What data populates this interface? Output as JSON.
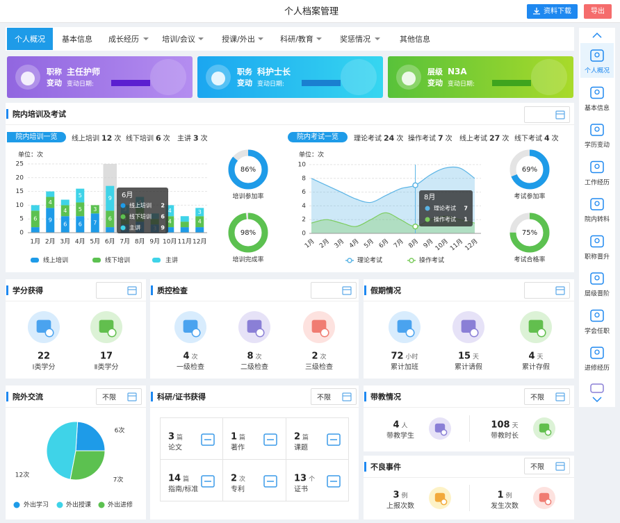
{
  "header": {
    "title": "个人档案管理",
    "download": "资料下载",
    "export": "导出"
  },
  "tabs": [
    "个人概况",
    "基本信息",
    "成长经历",
    "培训/会议",
    "授课/外出",
    "科研/教育",
    "奖惩情况",
    "其他信息"
  ],
  "cards": [
    {
      "label": "职称",
      "sub": "变动",
      "value": "主任护师",
      "date_label": "变动日期:"
    },
    {
      "label": "职务",
      "sub": "变动",
      "value": "科护士长",
      "date_label": "变动日期:"
    },
    {
      "label": "层级",
      "sub": "变动",
      "value": "N3A",
      "date_label": "变动日期:"
    }
  ],
  "training": {
    "title": "院内培训及考试",
    "train_tab": "院内培训一览",
    "train_stats": [
      {
        "label": "线上培训",
        "value": 12,
        "unit": "次"
      },
      {
        "label": "线下培训",
        "value": 6,
        "unit": "次"
      },
      {
        "label": "主讲",
        "value": 3,
        "unit": "次"
      }
    ],
    "exam_tab": "院内考试一览",
    "exam_stats": [
      {
        "label": "理论考试",
        "value": 24,
        "unit": "次"
      },
      {
        "label": "操作考试",
        "value": 7,
        "unit": "次"
      },
      {
        "label": "线上考试",
        "value": 27,
        "unit": "次"
      },
      {
        "label": "线下考试",
        "value": 4,
        "unit": "次"
      }
    ],
    "bar_chart": {
      "type": "bar",
      "stacked": true,
      "unit_label": "单位：次",
      "categories": [
        "1月",
        "2月",
        "3月",
        "4月",
        "5月",
        "6月",
        "7月",
        "8月",
        "9月",
        "10月",
        "11月",
        "12月"
      ],
      "ylim": [
        0,
        25
      ],
      "yticks": [
        0,
        5,
        10,
        15,
        20,
        25
      ],
      "grid": true,
      "tooltip_index": 5,
      "series": [
        {
          "name": "线上培训",
          "color": "#1e9be8",
          "values": [
            2,
            9,
            6,
            6,
            7,
            2,
            3,
            4,
            3,
            2,
            2,
            2
          ]
        },
        {
          "name": "线下培训",
          "color": "#5cc150",
          "values": [
            6,
            4,
            4,
            5,
            3,
            6,
            4,
            5,
            2,
            4,
            2,
            4
          ]
        },
        {
          "name": "主讲",
          "color": "#3fd3e8",
          "values": [
            2,
            2,
            2,
            5,
            0,
            9,
            3,
            4,
            2,
            4,
            2,
            3
          ]
        }
      ]
    },
    "line_chart": {
      "type": "line",
      "smooth": true,
      "area": true,
      "unit_label": "单位：次",
      "categories": [
        "1月",
        "2月",
        "3月",
        "4月",
        "5月",
        "6月",
        "7月",
        "8月",
        "9月",
        "10月",
        "11月",
        "12月"
      ],
      "ylim": [
        0,
        10
      ],
      "yticks": [
        0,
        2,
        4,
        6,
        8,
        10
      ],
      "grid": true,
      "tooltip_index": 7,
      "series": [
        {
          "name": "理论考试",
          "color": "#5bb4e5",
          "values": [
            8,
            7,
            6,
            5,
            4.5,
            5.5,
            6.5,
            7,
            8.5,
            9.5,
            9.5,
            8
          ]
        },
        {
          "name": "操作考试",
          "color": "#7ccc5e",
          "values": [
            1.5,
            2,
            1.5,
            1,
            2,
            3,
            2,
            1,
            2,
            2.5,
            2,
            1.5
          ]
        }
      ]
    },
    "train_rates": [
      {
        "name": "培训参加率",
        "value": 86,
        "value_label": "86%",
        "color": "#1e9be8"
      },
      {
        "name": "培训完成率",
        "value": 98,
        "value_label": "98%",
        "color": "#5cc150"
      }
    ],
    "exam_rates": [
      {
        "name": "考试参加率",
        "value": 69,
        "value_label": "69%",
        "color": "#1e9be8"
      },
      {
        "name": "考试合格率",
        "value": 75,
        "value_label": "75%",
        "color": "#5cc150"
      }
    ]
  },
  "credits": {
    "title": "学分获得",
    "items": [
      {
        "value": 22,
        "label": "Ⅰ类学分"
      },
      {
        "value": 17,
        "label": "Ⅱ类学分"
      }
    ]
  },
  "quality": {
    "title": "质控检查",
    "items": [
      {
        "value": 4,
        "unit": "次",
        "label": "一级检查"
      },
      {
        "value": 8,
        "unit": "次",
        "label": "二级检查"
      },
      {
        "value": 2,
        "unit": "次",
        "label": "三级检查"
      }
    ]
  },
  "leave": {
    "title": "假期情况",
    "items": [
      {
        "value": 72,
        "unit": "小时",
        "label": "累计加班"
      },
      {
        "value": 15,
        "unit": "天",
        "label": "累计请假"
      },
      {
        "value": 4,
        "unit": "天",
        "label": "累计存假"
      }
    ]
  },
  "outside": {
    "title": "院外交流",
    "filter": "不限",
    "pie": {
      "type": "pie",
      "categories": [
        "外出学习",
        "外出授课",
        "外出进修"
      ],
      "values": [
        6,
        12,
        7
      ],
      "value_labels": [
        "6次",
        "12次",
        "7次"
      ],
      "colors": [
        "#1e9be8",
        "#3fd3e8",
        "#5cc150"
      ]
    }
  },
  "research": {
    "title": "科研/证书获得",
    "filter": "不限",
    "items": [
      {
        "value": 3,
        "unit": "篇",
        "label": "论文"
      },
      {
        "value": 1,
        "unit": "篇",
        "label": "著作"
      },
      {
        "value": 2,
        "unit": "篇",
        "label": "课题"
      },
      {
        "value": 14,
        "unit": "篇",
        "label": "指南/标准"
      },
      {
        "value": 2,
        "unit": "次",
        "label": "专利"
      },
      {
        "value": 13,
        "unit": "个",
        "label": "证书"
      }
    ]
  },
  "teaching": {
    "title": "带教情况",
    "filter": "不限",
    "items": [
      {
        "value": 4,
        "unit": "人",
        "label": "带教学生"
      },
      {
        "value": 108,
        "unit": "天",
        "label": "带教时长"
      }
    ]
  },
  "adverse": {
    "title": "不良事件",
    "filter": "不限",
    "items": [
      {
        "value": 3,
        "unit": "例",
        "label": "上报次数"
      },
      {
        "value": 1,
        "unit": "例",
        "label": "发生次数"
      }
    ]
  },
  "sidebar": [
    "个人概况",
    "基本信息",
    "学历变动",
    "工作经历",
    "院内转科",
    "职称晋升",
    "层级晋阶",
    "学会任职",
    "进修经历"
  ]
}
